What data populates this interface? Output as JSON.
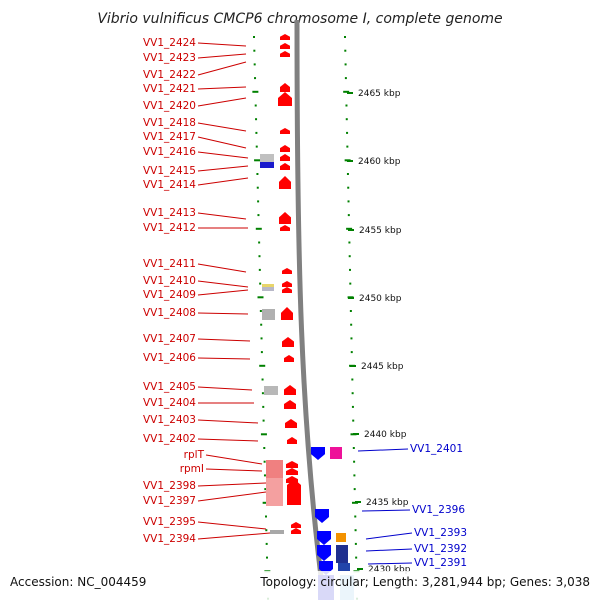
{
  "title": "Vibrio vulnificus CMCP6 chromosome I, complete genome",
  "footer": {
    "accession": "Accession: NC_004459",
    "topology": "Topology: circular; Length: 3,281,944 bp; Genes: 3,038"
  },
  "colors": {
    "forward": "#ff0000",
    "reverse": "#0000ff",
    "tick": "#008000",
    "axis": "#808080",
    "label_forward": "#cc0000",
    "label_reverse": "#0000cc"
  },
  "kbp_labels": [
    "2465 kbp",
    "2460 kbp",
    "2455 kbp",
    "2450 kbp",
    "2445 kbp",
    "2440 kbp",
    "2435 kbp",
    "2430 kbp"
  ],
  "genes_left": [
    "VV1_2424",
    "VV1_2423",
    "VV1_2422",
    "VV1_2421",
    "VV1_2420",
    "VV1_2418",
    "VV1_2417",
    "VV1_2416",
    "VV1_2415",
    "VV1_2414",
    "VV1_2413",
    "VV1_2412",
    "VV1_2411",
    "VV1_2410",
    "VV1_2409",
    "VV1_2408",
    "VV1_2407",
    "VV1_2406",
    "VV1_2405",
    "VV1_2404",
    "VV1_2403",
    "VV1_2402",
    "rplT",
    "rpmI",
    "VV1_2398",
    "VV1_2397",
    "VV1_2395",
    "VV1_2394"
  ],
  "genes_right": [
    "VV1_2401",
    "VV1_2396",
    "VV1_2393",
    "VV1_2392",
    "VV1_2391"
  ]
}
